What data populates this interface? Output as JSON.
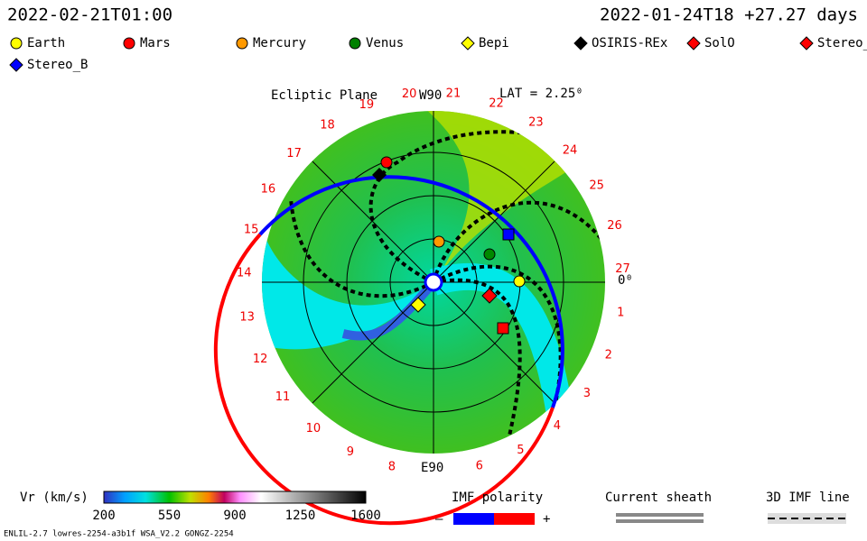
{
  "header": {
    "left": "2022-02-21T01:00",
    "right": "2022-01-24T18 +27.27 days"
  },
  "legend": [
    {
      "label": "Earth",
      "shape": "circle",
      "color": "#ffff00"
    },
    {
      "label": "Mars",
      "shape": "circle",
      "color": "#ff0000"
    },
    {
      "label": "Mercury",
      "shape": "circle",
      "color": "#ff9900"
    },
    {
      "label": "Venus",
      "shape": "circle",
      "color": "#008000"
    },
    {
      "label": "Bepi",
      "shape": "diamond",
      "color": "#ffff00"
    },
    {
      "label": "OSIRIS-REx",
      "shape": "diamond",
      "color": "#000000"
    },
    {
      "label": "SolO",
      "shape": "diamond",
      "color": "#ff0000"
    },
    {
      "label": "Stereo_",
      "shape": "diamond",
      "color": "#ff0000"
    },
    {
      "label": "Stereo_B",
      "shape": "diamond",
      "color": "#0000ff"
    }
  ],
  "plot": {
    "title": "Ecliptic Plane",
    "top_label": "W90",
    "lat": "LAT = 2.25⁰",
    "bottom_label": "E90",
    "right_label": "0⁰",
    "ring_labels": [
      1,
      2,
      3,
      4,
      5,
      6,
      8,
      9,
      10,
      11,
      12,
      13,
      14,
      15,
      16,
      17,
      18,
      19,
      20,
      21,
      22,
      23,
      24,
      25,
      26,
      27
    ]
  },
  "colorbar": {
    "title": "Vr (km/s)",
    "ticks": [
      200,
      550,
      900,
      1250,
      1600
    ]
  },
  "imf": {
    "title": "IMF polarity",
    "minus": "–",
    "plus": "+"
  },
  "sheath": {
    "title": "Current sheath"
  },
  "imf_line": {
    "title": "3D IMF line"
  },
  "footer": "ENLIL-2.7 lowres-2254-a3b1f WSA_V2.2 GONGZ-2254"
}
